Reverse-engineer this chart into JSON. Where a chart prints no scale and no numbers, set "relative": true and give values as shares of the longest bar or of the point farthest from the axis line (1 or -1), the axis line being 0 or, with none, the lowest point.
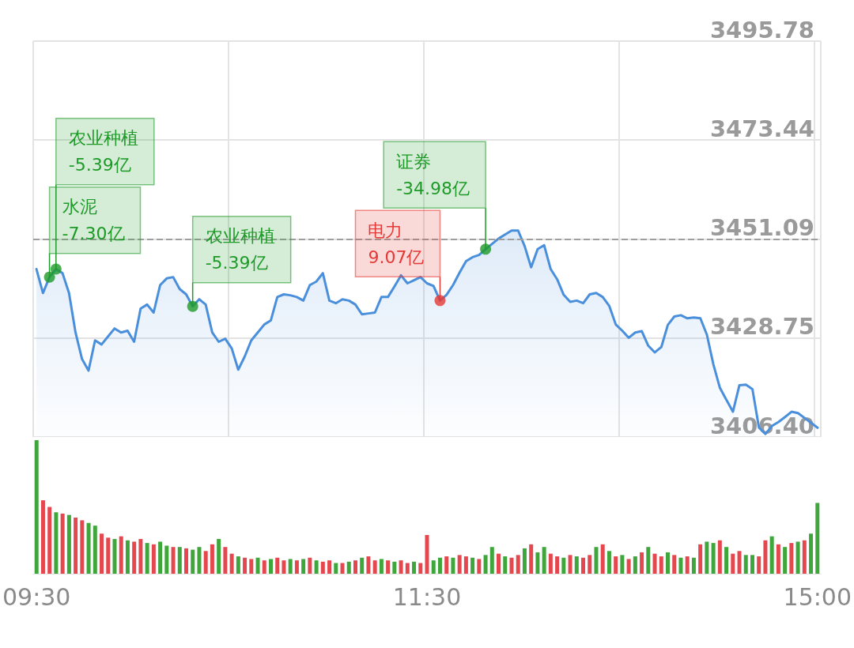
{
  "chart_data": [
    {
      "type": "area",
      "categories": [
        null,
        null,
        null,
        null,
        null,
        null,
        null,
        null,
        null,
        null,
        null,
        null,
        null,
        null,
        null,
        null,
        null,
        null,
        null,
        null,
        null,
        null,
        null,
        null,
        null,
        null,
        null,
        null,
        null,
        null,
        null,
        null,
        null,
        null,
        null,
        null,
        null,
        null,
        null,
        null,
        null,
        null,
        null,
        null,
        null,
        null,
        null,
        null,
        null,
        null,
        null,
        null,
        null,
        null,
        null,
        null,
        null,
        null,
        null,
        null,
        null,
        null,
        null,
        null,
        null,
        null,
        null,
        null,
        null,
        null,
        null,
        null,
        null,
        null,
        null,
        null,
        null,
        null,
        null,
        null,
        null,
        null,
        null,
        null,
        null,
        null,
        null,
        null,
        null,
        null,
        null,
        null,
        null,
        null,
        null,
        null,
        null,
        null,
        null,
        null,
        null,
        null,
        null,
        null,
        null,
        null,
        null,
        null,
        null,
        null,
        null,
        null,
        null,
        null,
        null,
        null,
        null,
        null,
        null,
        null,
        null
      ],
      "ylim": [
        3406.4,
        3495.78
      ],
      "yticks": [
        {
          "value": 3406.4,
          "label": "3406.40"
        },
        3428.75,
        3451.09,
        3473.44,
        3495.78
      ],
      "tick_labels": "y",
      "grid": true,
      "marker": "none",
      "ref_lines": [
        {
          "axis": "y",
          "value": 3451.09,
          "color": "#9e9e9e",
          "line_style": "dashed"
        }
      ],
      "series": [
        {
          "color": "#4a8fdb",
          "values": [
            3444.3,
            3438.9,
            3442.5,
            3444.3,
            3443.4,
            3438.9,
            3430.0,
            3424.0,
            3421.4,
            3428.2,
            3427.3,
            3429.1,
            3430.9,
            3430.0,
            3430.4,
            3427.9,
            3435.4,
            3436.3,
            3434.5,
            3440.7,
            3442.2,
            3442.5,
            3439.8,
            3438.6,
            3435.9,
            3437.5,
            3436.3,
            3430.0,
            3427.9,
            3428.6,
            3426.4,
            3421.6,
            3424.6,
            3428.2,
            3430.0,
            3431.8,
            3432.7,
            3438.0,
            3438.6,
            3438.4,
            3438.0,
            3437.2,
            3440.7,
            3441.5,
            3443.4,
            3437.2,
            3436.6,
            3437.5,
            3437.2,
            3436.3,
            3434.1,
            3434.3,
            3434.5,
            3438.0,
            3438.0,
            3440.4,
            3442.9,
            3441.1,
            3441.8,
            3442.5,
            3441.1,
            3440.5,
            3437.2,
            3438.5,
            3440.7,
            3443.5,
            3446.1,
            3447.0,
            3447.5,
            3448.8,
            3450.0,
            3451.2,
            3452.1,
            3453.0,
            3453.0,
            3449.5,
            3444.7,
            3448.8,
            3449.7,
            3444.3,
            3442.0,
            3438.5,
            3436.9,
            3437.2,
            3436.6,
            3438.6,
            3438.9,
            3438.0,
            3436.0,
            3431.8,
            3430.4,
            3428.8,
            3430.0,
            3430.3,
            3427.0,
            3425.5,
            3426.7,
            3431.7,
            3433.6,
            3433.9,
            3433.2,
            3433.4,
            3433.2,
            3429.5,
            3422.8,
            3417.5,
            3414.8,
            3412.1,
            3418.1,
            3418.2,
            3417.2,
            3408.5,
            3407.1,
            3408.9,
            3409.8,
            3410.9,
            3412.1,
            3411.8,
            3410.7,
            3409.6,
            3408.5
          ]
        },
        {
          "type": "scatter",
          "marker": "circle",
          "values": [
            null,
            null,
            3442.5,
            3444.3,
            null,
            null,
            null,
            null,
            null,
            null,
            null,
            null,
            null,
            null,
            null,
            null,
            null,
            null,
            null,
            null,
            null,
            null,
            null,
            null,
            3435.9,
            null,
            null,
            null,
            null,
            null,
            null,
            null,
            null,
            null,
            null,
            null,
            null,
            null,
            null,
            null,
            null,
            null,
            null,
            null,
            null,
            null,
            null,
            null,
            null,
            null,
            null,
            null,
            null,
            null,
            null,
            null,
            null,
            null,
            null,
            null,
            null,
            null,
            3437.2,
            null,
            null,
            null,
            null,
            null,
            null,
            3448.8,
            null,
            null,
            null,
            null,
            null,
            null,
            null,
            null,
            null,
            null,
            null,
            null,
            null,
            null,
            null,
            null,
            null,
            null,
            null,
            null,
            null,
            null,
            null,
            null,
            null,
            null,
            null,
            null,
            null,
            null,
            null,
            null,
            null,
            null,
            null,
            null,
            null,
            null,
            null,
            null,
            null,
            null,
            null,
            null,
            null,
            null,
            null,
            null,
            null,
            null,
            null
          ],
          "colors": [
            null,
            null,
            "#1e9a28",
            "#1e9a28",
            null,
            null,
            null,
            null,
            null,
            null,
            null,
            null,
            null,
            null,
            null,
            null,
            null,
            null,
            null,
            null,
            null,
            null,
            null,
            null,
            "#1e9a28",
            null,
            null,
            null,
            null,
            null,
            null,
            null,
            null,
            null,
            null,
            null,
            null,
            null,
            null,
            null,
            null,
            null,
            null,
            null,
            null,
            null,
            null,
            null,
            null,
            null,
            null,
            null,
            null,
            null,
            null,
            null,
            null,
            null,
            null,
            null,
            null,
            null,
            "#e53935",
            null,
            null,
            null,
            null,
            null,
            null,
            "#1e9a28",
            null,
            null,
            null,
            null,
            null,
            null,
            null,
            null,
            null,
            null,
            null,
            null,
            null,
            null,
            null,
            null,
            null,
            null,
            null,
            null,
            null,
            null,
            null,
            null,
            null,
            null,
            null,
            null,
            null,
            null,
            null,
            null,
            null,
            null,
            null,
            null,
            null,
            null,
            null,
            null,
            null,
            null,
            null,
            null,
            null,
            null,
            null,
            null,
            null,
            null,
            null
          ]
        }
      ],
      "annotations": [
        "水泥\n-7.30亿",
        "农业种植\n-5.39亿",
        "农业种植\n-5.39亿",
        "电力\n9.07亿",
        "证券\n-34.98亿"
      ]
    },
    {
      "type": "bar",
      "relative": true,
      "tick_labels": "x",
      "categories": [
        "09:30",
        null,
        null,
        null,
        null,
        null,
        null,
        null,
        null,
        null,
        null,
        null,
        null,
        null,
        null,
        null,
        null,
        null,
        null,
        null,
        null,
        null,
        null,
        null,
        null,
        null,
        null,
        null,
        null,
        null,
        null,
        null,
        null,
        null,
        null,
        null,
        null,
        null,
        null,
        null,
        null,
        null,
        null,
        null,
        null,
        null,
        null,
        null,
        null,
        null,
        null,
        null,
        null,
        null,
        null,
        null,
        null,
        null,
        null,
        null,
        "11:30",
        null,
        null,
        null,
        null,
        null,
        null,
        null,
        null,
        null,
        null,
        null,
        null,
        null,
        null,
        null,
        null,
        null,
        null,
        null,
        null,
        null,
        null,
        null,
        null,
        null,
        null,
        null,
        null,
        null,
        null,
        null,
        null,
        null,
        null,
        null,
        null,
        null,
        null,
        null,
        null,
        null,
        null,
        null,
        null,
        null,
        null,
        null,
        null,
        null,
        null,
        null,
        null,
        null,
        null,
        null,
        null,
        null,
        null,
        null,
        "15:00"
      ],
      "values": [
        1,
        0.55,
        0.5,
        0.46,
        0.45,
        0.44,
        0.42,
        0.4,
        0.38,
        0.36,
        0.3,
        0.27,
        0.26,
        0.28,
        0.25,
        0.24,
        0.26,
        0.23,
        0.22,
        0.24,
        0.21,
        0.2,
        0.2,
        0.19,
        0.18,
        0.2,
        0.17,
        0.22,
        0.26,
        0.2,
        0.15,
        0.13,
        0.12,
        0.11,
        0.12,
        0.1,
        0.11,
        0.12,
        0.1,
        0.11,
        0.1,
        0.11,
        0.12,
        0.1,
        0.09,
        0.1,
        0.08,
        0.08,
        0.09,
        0.1,
        0.12,
        0.13,
        0.1,
        0.11,
        0.1,
        0.09,
        0.1,
        0.08,
        0.09,
        0.08,
        0.29,
        0.1,
        0.12,
        0.13,
        0.12,
        0.14,
        0.13,
        0.12,
        0.11,
        0.14,
        0.2,
        0.15,
        0.13,
        0.12,
        0.14,
        0.19,
        0.22,
        0.16,
        0.2,
        0.15,
        0.13,
        0.12,
        0.14,
        0.13,
        0.12,
        0.14,
        0.2,
        0.22,
        0.17,
        0.13,
        0.14,
        0.11,
        0.13,
        0.16,
        0.2,
        0.15,
        0.13,
        0.16,
        0.14,
        0.12,
        0.13,
        0.12,
        0.22,
        0.24,
        0.23,
        0.25,
        0.2,
        0.15,
        0.17,
        0.14,
        0.14,
        0.13,
        0.25,
        0.28,
        0.22,
        0.2,
        0.23,
        0.24,
        0.25,
        0.3,
        0.53
      ],
      "colors": [
        "#3ea63a",
        "#e5474f",
        "#e5474f",
        "#3ea63a",
        "#e5474f",
        "#3ea63a",
        "#e5474f",
        "#e5474f",
        "#3ea63a",
        "#3ea63a",
        "#e5474f",
        "#e5474f",
        "#3ea63a",
        "#e5474f",
        "#3ea63a",
        "#e5474f",
        "#e5474f",
        "#3ea63a",
        "#e5474f",
        "#3ea63a",
        "#3ea63a",
        "#e5474f",
        "#3ea63a",
        "#e5474f",
        "#3ea63a",
        "#3ea63a",
        "#e5474f",
        "#e5474f",
        "#3ea63a",
        "#e5474f",
        "#e5474f",
        "#3ea63a",
        "#e5474f",
        "#e5474f",
        "#3ea63a",
        "#e5474f",
        "#3ea63a",
        "#e5474f",
        "#e5474f",
        "#3ea63a",
        "#e5474f",
        "#3ea63a",
        "#e5474f",
        "#3ea63a",
        "#e5474f",
        "#e5474f",
        "#3ea63a",
        "#e5474f",
        "#3ea63a",
        "#e5474f",
        "#3ea63a",
        "#e5474f",
        "#e5474f",
        "#3ea63a",
        "#e5474f",
        "#3ea63a",
        "#e5474f",
        "#e5474f",
        "#3ea63a",
        "#e5474f",
        "#e5474f",
        "#3ea63a",
        "#3ea63a",
        "#e5474f",
        "#3ea63a",
        "#e5474f",
        "#e5474f",
        "#3ea63a",
        "#e5474f",
        "#3ea63a",
        "#3ea63a",
        "#e5474f",
        "#3ea63a",
        "#e5474f",
        "#e5474f",
        "#3ea63a",
        "#e5474f",
        "#3ea63a",
        "#3ea63a",
        "#e5474f",
        "#e5474f",
        "#3ea63a",
        "#e5474f",
        "#3ea63a",
        "#e5474f",
        "#e5474f",
        "#3ea63a",
        "#e5474f",
        "#3ea63a",
        "#e5474f",
        "#3ea63a",
        "#e5474f",
        "#3ea63a",
        "#e5474f",
        "#3ea63a",
        "#e5474f",
        "#e5474f",
        "#3ea63a",
        "#e5474f",
        "#3ea63a",
        "#e5474f",
        "#3ea63a",
        "#e5474f",
        "#3ea63a",
        "#3ea63a",
        "#e5474f",
        "#3ea63a",
        "#e5474f",
        "#e5474f",
        "#3ea63a",
        "#3ea63a",
        "#e5474f",
        "#e5474f",
        "#3ea63a",
        "#e5474f",
        "#3ea63a",
        "#e5474f",
        "#3ea63a",
        "#e5474f",
        "#3ea63a",
        "#3ea63a"
      ]
    }
  ]
}
